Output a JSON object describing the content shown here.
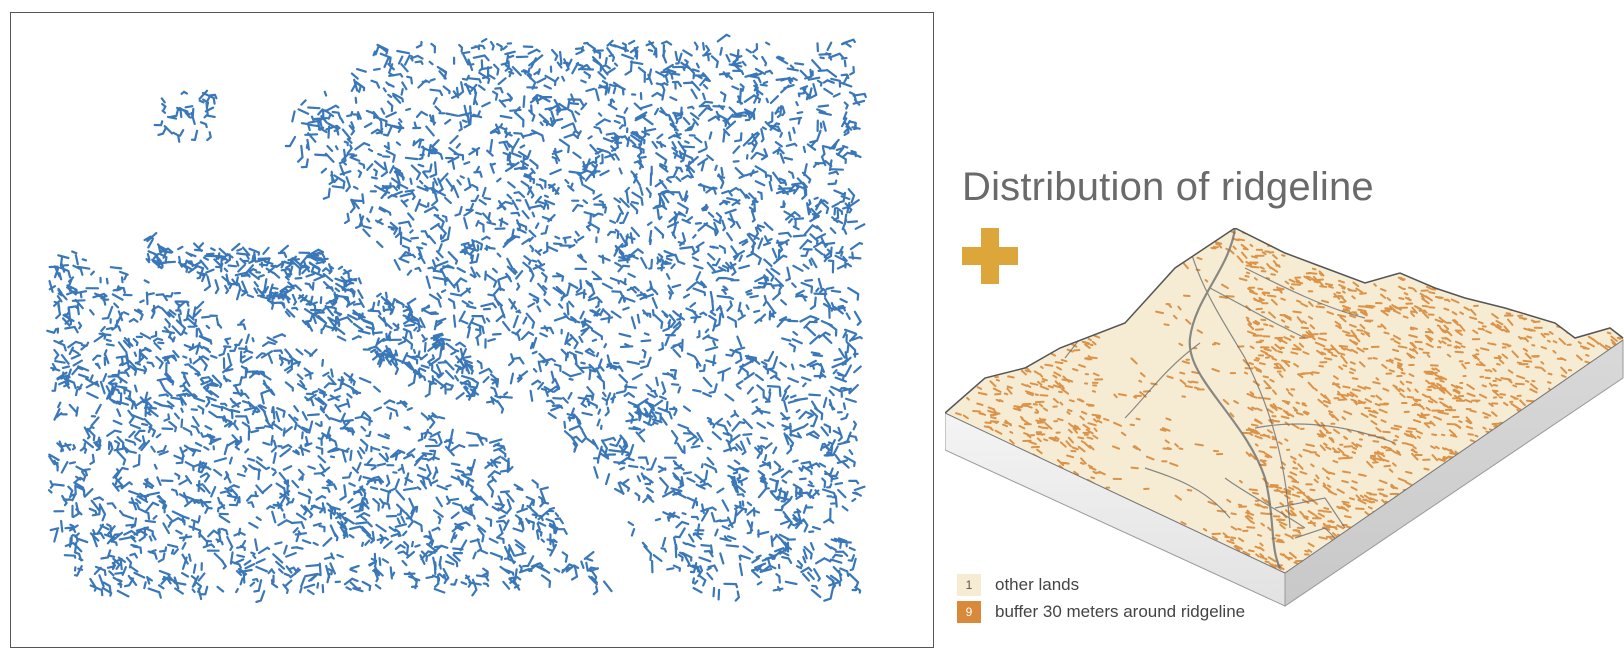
{
  "title": "Distribution of ridgeline",
  "colors": {
    "ridgeline_blue": "#3a77b8",
    "plus_gold": "#dca63b",
    "other_lands": "#f6ecd3",
    "buffer": "#d88a3a",
    "panel_border": "#555555",
    "road": "#6e6e6e"
  },
  "left_panel": {
    "icon": "ridgeline-network-map"
  },
  "plus": {
    "icon": "plus-icon"
  },
  "terrain": {
    "icon": "terrain-block-3d"
  },
  "legend": {
    "items": [
      {
        "value": "1",
        "label": "other lands",
        "color": "#f6ecd3"
      },
      {
        "value": "9",
        "label": "buffer 30 meters around ridgeline",
        "color": "#d88a3a"
      }
    ]
  }
}
